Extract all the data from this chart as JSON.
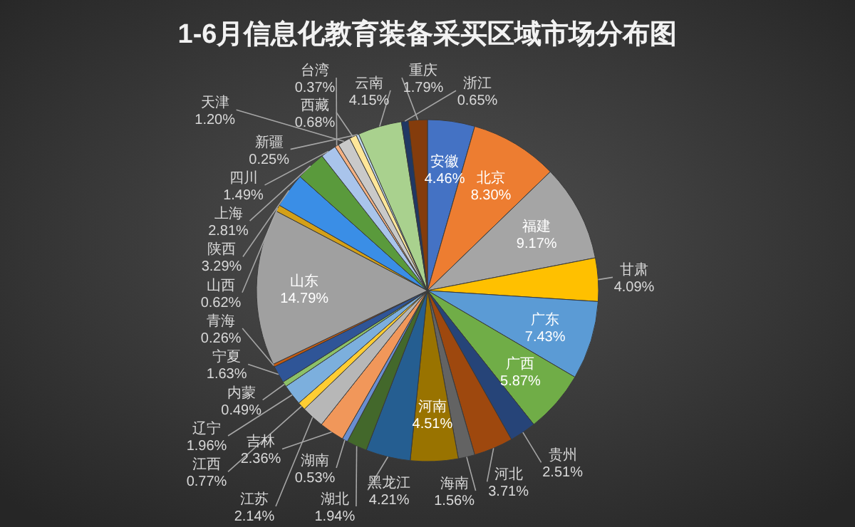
{
  "chart_data": {
    "type": "pie",
    "title": "1-6月信息化教育装备采买区域市场分布图",
    "categories": [
      "安徽",
      "北京",
      "福建",
      "甘肃",
      "广东",
      "广西",
      "贵州",
      "河北",
      "海南",
      "河南",
      "黑龙江",
      "湖北",
      "湖南",
      "吉林",
      "江苏",
      "江西",
      "辽宁",
      "内蒙",
      "宁夏",
      "青海",
      "山东",
      "山西",
      "陕西",
      "上海",
      "四川",
      "台湾",
      "天津",
      "西藏",
      "新疆",
      "云南",
      "浙江",
      "重庆"
    ],
    "values": [
      4.46,
      8.3,
      9.17,
      4.09,
      7.43,
      5.87,
      2.51,
      3.71,
      1.56,
      4.51,
      4.21,
      1.94,
      0.53,
      2.36,
      2.14,
      0.77,
      1.96,
      0.49,
      1.63,
      0.26,
      14.79,
      0.62,
      3.29,
      2.81,
      1.49,
      0.37,
      1.2,
      0.68,
      0.25,
      4.15,
      0.65,
      1.79
    ],
    "value_labels": [
      "4.46%",
      "8.30%",
      "9.17%",
      "4.09%",
      "7.43%",
      "5.87%",
      "2.51%",
      "3.71%",
      "1.56%",
      "4.51%",
      "4.21%",
      "1.94%",
      "0.53%",
      "2.36%",
      "2.14%",
      "0.77%",
      "1.96%",
      "0.49%",
      "1.63%",
      "0.26%",
      "14.79%",
      "0.62%",
      "3.29%",
      "2.81%",
      "1.49%",
      "0.37%",
      "1.20%",
      "0.68%",
      "0.25%",
      "4.15%",
      "0.65%",
      "1.79%"
    ],
    "colors": [
      "#4472c4",
      "#ed7d31",
      "#a5a5a5",
      "#ffc000",
      "#5b9bd5",
      "#70ad47",
      "#264478",
      "#9e480e",
      "#636363",
      "#997300",
      "#255e91",
      "#43682b",
      "#698ed0",
      "#f1975a",
      "#b7b7b7",
      "#ffcd33",
      "#7cafdd",
      "#8cc168",
      "#2f5597",
      "#c55a11",
      "#a0a0a0",
      "#d4a017",
      "#3a8ee6",
      "#5a9a3c",
      "#a9c4eb",
      "#f4b183",
      "#c9c9c9",
      "#ffe699",
      "#bdd7ee",
      "#a9d18e",
      "#203864",
      "#843c0c"
    ]
  }
}
